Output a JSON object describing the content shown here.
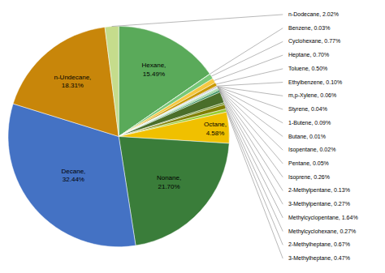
{
  "chart_data": {
    "type": "pie",
    "categories": [
      "Hexane",
      "Benzene",
      "Cyclohexane",
      "Heptane",
      "Toluene",
      "Ethylbenzene",
      "m,p-Xylene",
      "Styrene",
      "1-Butene",
      "Butane",
      "Isopentane",
      "Pentane",
      "Isoprene",
      "2-Methylpentane",
      "3-Methylpentane",
      "Methylcyclopentane",
      "Methylcyclohexane",
      "2-Methylheptane",
      "3-Methylheptane",
      "Octane",
      "Nonane",
      "Decane",
      "n-Undecane",
      "n-Dodecane"
    ],
    "values": [
      15.49,
      0.03,
      0.77,
      0.7,
      0.5,
      0.1,
      0.06,
      0.04,
      0.09,
      0.01,
      0.02,
      0.05,
      0.26,
      0.13,
      0.27,
      1.64,
      0.27,
      0.67,
      0.47,
      4.58,
      21.7,
      32.44,
      18.31,
      2.02
    ],
    "colors": [
      "#5aaa5a",
      "#90ee90",
      "#78c878",
      "#f5c842",
      "#c89800",
      "#8b6200",
      "#7a5500",
      "#b8b8b8",
      "#00008b",
      "#3a5fcd",
      "#aaddee",
      "#87ceeb",
      "#aaddaa",
      "#228b22",
      "#2e8b57",
      "#4a6e2a",
      "#6b8e23",
      "#808000",
      "#9acd32",
      "#f0c000",
      "#3a7d3a",
      "#4472c4",
      "#c8860a",
      "#c5dc8c"
    ],
    "data_labels": true,
    "value_labels": [
      "Hexane,\n15.49%",
      "Benzene, 0.03%",
      "Cyclohexane, 0.77%",
      "Heptane, 0.70%",
      "Toluene, 0.50%",
      "Ethylbenzene, 0.10%",
      "m,p-Xylene, 0.06%",
      "Styrene, 0.04%",
      "1-Butene, 0.09%",
      "Butane, 0.01%",
      "Isopentane, 0.02%",
      "Pentane, 0.05%",
      "Isoprene, 0.26%",
      "2-Methylpentane, 0.13%",
      "3-Methylpentane, 0.27%",
      "Methylcyclopentane, 1.64%",
      "Methylcyclohexane, 0.27%",
      "2-Methylheptane, 0.67%",
      "3-Methylheptane, 0.47%",
      "Octane,\n4.58%",
      "Nonane,\n21.70%",
      "Decane,\n32.44%",
      "n-Undecane,\n18.31%",
      "n-Dodecane, 2.02%"
    ]
  }
}
